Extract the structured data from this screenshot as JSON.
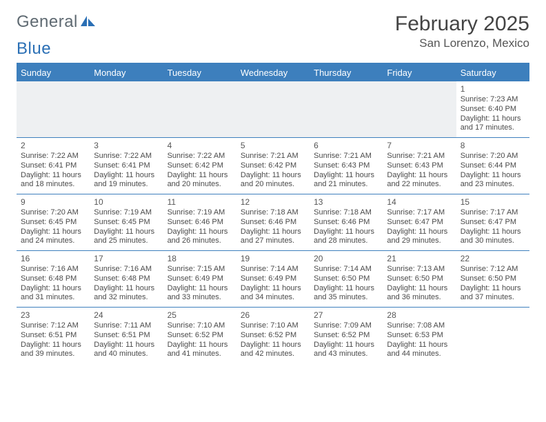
{
  "logo": {
    "text1": "General",
    "text2": "Blue"
  },
  "title": {
    "month": "February 2025",
    "location": "San Lorenzo, Mexico"
  },
  "colors": {
    "accent": "#3d7fbd",
    "grayRow": "#eef0f2",
    "text": "#4a4a4a"
  },
  "weekdays": [
    "Sunday",
    "Monday",
    "Tuesday",
    "Wednesday",
    "Thursday",
    "Friday",
    "Saturday"
  ],
  "weeks": [
    [
      null,
      null,
      null,
      null,
      null,
      null,
      {
        "d": "1",
        "sr": "Sunrise: 7:23 AM",
        "ss": "Sunset: 6:40 PM",
        "dl": "Daylight: 11 hours and 17 minutes."
      }
    ],
    [
      {
        "d": "2",
        "sr": "Sunrise: 7:22 AM",
        "ss": "Sunset: 6:41 PM",
        "dl": "Daylight: 11 hours and 18 minutes."
      },
      {
        "d": "3",
        "sr": "Sunrise: 7:22 AM",
        "ss": "Sunset: 6:41 PM",
        "dl": "Daylight: 11 hours and 19 minutes."
      },
      {
        "d": "4",
        "sr": "Sunrise: 7:22 AM",
        "ss": "Sunset: 6:42 PM",
        "dl": "Daylight: 11 hours and 20 minutes."
      },
      {
        "d": "5",
        "sr": "Sunrise: 7:21 AM",
        "ss": "Sunset: 6:42 PM",
        "dl": "Daylight: 11 hours and 20 minutes."
      },
      {
        "d": "6",
        "sr": "Sunrise: 7:21 AM",
        "ss": "Sunset: 6:43 PM",
        "dl": "Daylight: 11 hours and 21 minutes."
      },
      {
        "d": "7",
        "sr": "Sunrise: 7:21 AM",
        "ss": "Sunset: 6:43 PM",
        "dl": "Daylight: 11 hours and 22 minutes."
      },
      {
        "d": "8",
        "sr": "Sunrise: 7:20 AM",
        "ss": "Sunset: 6:44 PM",
        "dl": "Daylight: 11 hours and 23 minutes."
      }
    ],
    [
      {
        "d": "9",
        "sr": "Sunrise: 7:20 AM",
        "ss": "Sunset: 6:45 PM",
        "dl": "Daylight: 11 hours and 24 minutes."
      },
      {
        "d": "10",
        "sr": "Sunrise: 7:19 AM",
        "ss": "Sunset: 6:45 PM",
        "dl": "Daylight: 11 hours and 25 minutes."
      },
      {
        "d": "11",
        "sr": "Sunrise: 7:19 AM",
        "ss": "Sunset: 6:46 PM",
        "dl": "Daylight: 11 hours and 26 minutes."
      },
      {
        "d": "12",
        "sr": "Sunrise: 7:18 AM",
        "ss": "Sunset: 6:46 PM",
        "dl": "Daylight: 11 hours and 27 minutes."
      },
      {
        "d": "13",
        "sr": "Sunrise: 7:18 AM",
        "ss": "Sunset: 6:46 PM",
        "dl": "Daylight: 11 hours and 28 minutes."
      },
      {
        "d": "14",
        "sr": "Sunrise: 7:17 AM",
        "ss": "Sunset: 6:47 PM",
        "dl": "Daylight: 11 hours and 29 minutes."
      },
      {
        "d": "15",
        "sr": "Sunrise: 7:17 AM",
        "ss": "Sunset: 6:47 PM",
        "dl": "Daylight: 11 hours and 30 minutes."
      }
    ],
    [
      {
        "d": "16",
        "sr": "Sunrise: 7:16 AM",
        "ss": "Sunset: 6:48 PM",
        "dl": "Daylight: 11 hours and 31 minutes."
      },
      {
        "d": "17",
        "sr": "Sunrise: 7:16 AM",
        "ss": "Sunset: 6:48 PM",
        "dl": "Daylight: 11 hours and 32 minutes."
      },
      {
        "d": "18",
        "sr": "Sunrise: 7:15 AM",
        "ss": "Sunset: 6:49 PM",
        "dl": "Daylight: 11 hours and 33 minutes."
      },
      {
        "d": "19",
        "sr": "Sunrise: 7:14 AM",
        "ss": "Sunset: 6:49 PM",
        "dl": "Daylight: 11 hours and 34 minutes."
      },
      {
        "d": "20",
        "sr": "Sunrise: 7:14 AM",
        "ss": "Sunset: 6:50 PM",
        "dl": "Daylight: 11 hours and 35 minutes."
      },
      {
        "d": "21",
        "sr": "Sunrise: 7:13 AM",
        "ss": "Sunset: 6:50 PM",
        "dl": "Daylight: 11 hours and 36 minutes."
      },
      {
        "d": "22",
        "sr": "Sunrise: 7:12 AM",
        "ss": "Sunset: 6:50 PM",
        "dl": "Daylight: 11 hours and 37 minutes."
      }
    ],
    [
      {
        "d": "23",
        "sr": "Sunrise: 7:12 AM",
        "ss": "Sunset: 6:51 PM",
        "dl": "Daylight: 11 hours and 39 minutes."
      },
      {
        "d": "24",
        "sr": "Sunrise: 7:11 AM",
        "ss": "Sunset: 6:51 PM",
        "dl": "Daylight: 11 hours and 40 minutes."
      },
      {
        "d": "25",
        "sr": "Sunrise: 7:10 AM",
        "ss": "Sunset: 6:52 PM",
        "dl": "Daylight: 11 hours and 41 minutes."
      },
      {
        "d": "26",
        "sr": "Sunrise: 7:10 AM",
        "ss": "Sunset: 6:52 PM",
        "dl": "Daylight: 11 hours and 42 minutes."
      },
      {
        "d": "27",
        "sr": "Sunrise: 7:09 AM",
        "ss": "Sunset: 6:52 PM",
        "dl": "Daylight: 11 hours and 43 minutes."
      },
      {
        "d": "28",
        "sr": "Sunrise: 7:08 AM",
        "ss": "Sunset: 6:53 PM",
        "dl": "Daylight: 11 hours and 44 minutes."
      },
      null
    ]
  ]
}
